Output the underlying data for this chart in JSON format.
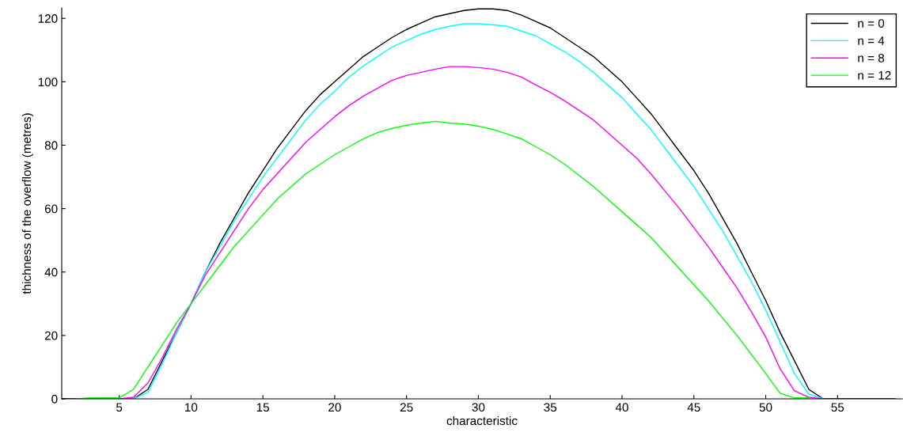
{
  "chart_data": {
    "type": "line",
    "xlabel": "characteristic",
    "ylabel": "thichness of the overflow (metres)",
    "x": [
      1,
      2,
      3,
      4,
      5,
      6,
      7,
      8,
      9,
      10,
      11,
      12,
      13,
      14,
      15,
      16,
      17,
      18,
      19,
      20,
      21,
      22,
      23,
      24,
      25,
      26,
      27,
      28,
      29,
      30,
      31,
      32,
      33,
      34,
      35,
      36,
      37,
      38,
      39,
      40,
      41,
      42,
      43,
      44,
      45,
      46,
      47,
      48,
      49,
      50,
      51,
      52,
      53,
      54,
      55,
      56,
      57,
      58,
      59
    ],
    "series": [
      {
        "name": "n = 0",
        "color": "#000000",
        "values": [
          0,
          0,
          0,
          0,
          0,
          0,
          3,
          12,
          21,
          30,
          40,
          49,
          57,
          65,
          72,
          79,
          85,
          91,
          96,
          100,
          104,
          108,
          111,
          114,
          116.5,
          118.5,
          120.5,
          121.5,
          122.5,
          123,
          123,
          122.5,
          121,
          119,
          117,
          114,
          111,
          108,
          104,
          100,
          95,
          90,
          84,
          78,
          72,
          65,
          57,
          49,
          40,
          31,
          21,
          12,
          3,
          0,
          0,
          0,
          0,
          0,
          0
        ]
      },
      {
        "name": "n = 4",
        "color": "#00ffff",
        "values": [
          null,
          null,
          null,
          null,
          0,
          0,
          2,
          11,
          21,
          30,
          40,
          48,
          56,
          63,
          70,
          76,
          82,
          88,
          93,
          97,
          101.5,
          105,
          108,
          111,
          113,
          115,
          116.5,
          117.5,
          118.3,
          118.3,
          118,
          117.5,
          116,
          114.5,
          112,
          109.5,
          106.5,
          103,
          99,
          95,
          90,
          85,
          79,
          73,
          67,
          60,
          53,
          45,
          37,
          28,
          18,
          8,
          1.5,
          0,
          null,
          null,
          null,
          null,
          null
        ]
      },
      {
        "name": "n = 8",
        "color": "#ff00ff",
        "values": [
          null,
          null,
          null,
          0,
          0,
          0.5,
          5,
          13,
          22,
          30,
          39,
          46,
          53,
          60,
          66,
          71,
          76,
          81,
          85,
          89,
          92.5,
          95.5,
          98,
          100.5,
          102,
          103,
          104,
          104.8,
          104.8,
          104.5,
          104,
          103,
          101.5,
          99,
          96.7,
          94,
          91,
          88,
          84,
          80,
          76,
          71,
          65.5,
          60,
          54,
          48,
          41.5,
          35,
          27.5,
          19.5,
          9.5,
          2.5,
          0.5,
          0,
          null,
          null,
          null,
          null,
          null
        ]
      },
      {
        "name": "n = 12",
        "color": "#00ff00",
        "values": [
          null,
          0,
          0.3,
          0.3,
          0.3,
          3,
          10,
          17,
          24,
          30,
          36,
          42,
          48,
          53,
          58,
          63,
          67,
          71,
          74,
          77,
          79.5,
          82,
          84,
          85.3,
          86.3,
          87,
          87.5,
          87,
          86.7,
          86,
          85,
          83.5,
          82,
          79.5,
          77,
          74,
          70.5,
          67,
          63,
          59,
          55,
          51,
          46,
          41,
          36,
          31,
          25.5,
          20,
          14,
          8,
          1.8,
          0.3,
          0.3,
          null,
          null,
          null,
          null,
          null,
          null
        ]
      }
    ],
    "xlim": [
      1,
      59.5
    ],
    "ylim": [
      0,
      123.3
    ],
    "xticks": [
      5,
      10,
      15,
      20,
      25,
      30,
      35,
      40,
      45,
      50,
      55
    ],
    "yticks": [
      0,
      20,
      40,
      60,
      80,
      100,
      120
    ],
    "legend": "top right",
    "grid": false,
    "marker": "none",
    "line_style": "solid"
  }
}
